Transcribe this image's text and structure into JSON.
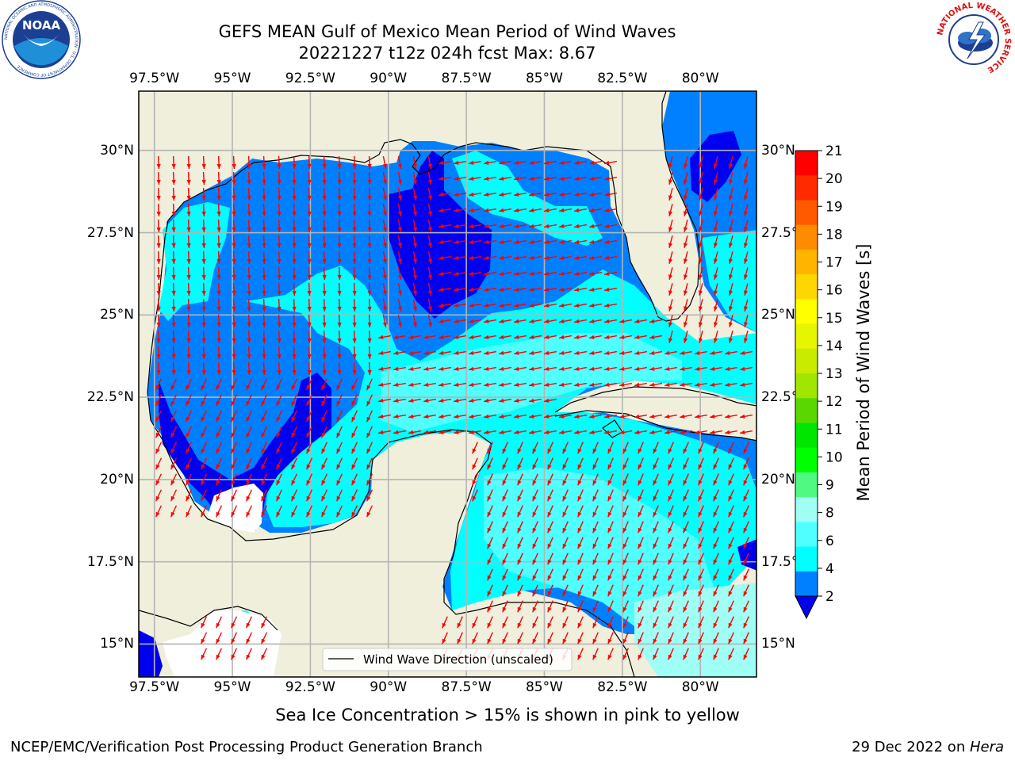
{
  "title": {
    "line1": "GEFS MEAN Gulf of Mexico Mean Period of Wind Waves",
    "line2": "20221227 t12z 024h fcst   Max: 8.67"
  },
  "logos": {
    "left": {
      "name": "NOAA",
      "ring_text": "NATIONAL OCEANIC AND ATMOSPHERIC ADMINISTRATION · U.S. DEPARTMENT OF COMMERCE"
    },
    "right": {
      "ring_text": "NATIONAL WEATHER SERVICE"
    }
  },
  "axes": {
    "lon_ticks": [
      "97.5°W",
      "95°W",
      "92.5°W",
      "90°W",
      "87.5°W",
      "85°W",
      "82.5°W",
      "80°W"
    ],
    "lon_values": [
      -97.5,
      -95,
      -92.5,
      -90,
      -87.5,
      -85,
      -82.5,
      -80
    ],
    "lat_ticks": [
      "30°N",
      "27.5°N",
      "25°N",
      "22.5°N",
      "20°N",
      "17.5°N",
      "15°N"
    ],
    "lat_values": [
      30,
      27.5,
      25,
      22.5,
      20,
      17.5,
      15
    ],
    "lon_range": [
      -98,
      -78.2
    ],
    "lat_range": [
      14,
      31.8
    ],
    "grid": true
  },
  "colorbar": {
    "label": "Mean Period of Wind Waves [s]",
    "ticks": [
      "21",
      "20",
      "19",
      "18",
      "17",
      "16",
      "15",
      "14",
      "13",
      "12",
      "11",
      "10",
      "9",
      "8",
      "6",
      "4",
      "2"
    ],
    "colors": [
      "#ff0000",
      "#ff2a00",
      "#ff5a00",
      "#ff8c00",
      "#ffb400",
      "#ffd700",
      "#ffff00",
      "#e6f500",
      "#c8eb00",
      "#a0e600",
      "#5ad700",
      "#00e600",
      "#00ff00",
      "#50fa82",
      "#a0fff5",
      "#50ffff",
      "#00ffff",
      "#0080ff"
    ],
    "extend_color": "#0000f0"
  },
  "legend": {
    "label": "Wind Wave Direction (unscaled)"
  },
  "colors": {
    "land": "#efefdc",
    "arrow": "#ff0000",
    "band_2_4": "#0080ff",
    "band_4_6": "#00ffff",
    "band_6_8": "#50ffff",
    "band_8_9": "#a0fff5",
    "band_lt2": "#0000f0"
  },
  "sea_ice_note": "Sea Ice Concentration > 15% is shown in pink to yellow",
  "footer": {
    "left": "NCEP/EMC/Verification Post Processing Product Generation Branch",
    "date": "29 Dec 2022 on ",
    "machine": "Hera"
  }
}
